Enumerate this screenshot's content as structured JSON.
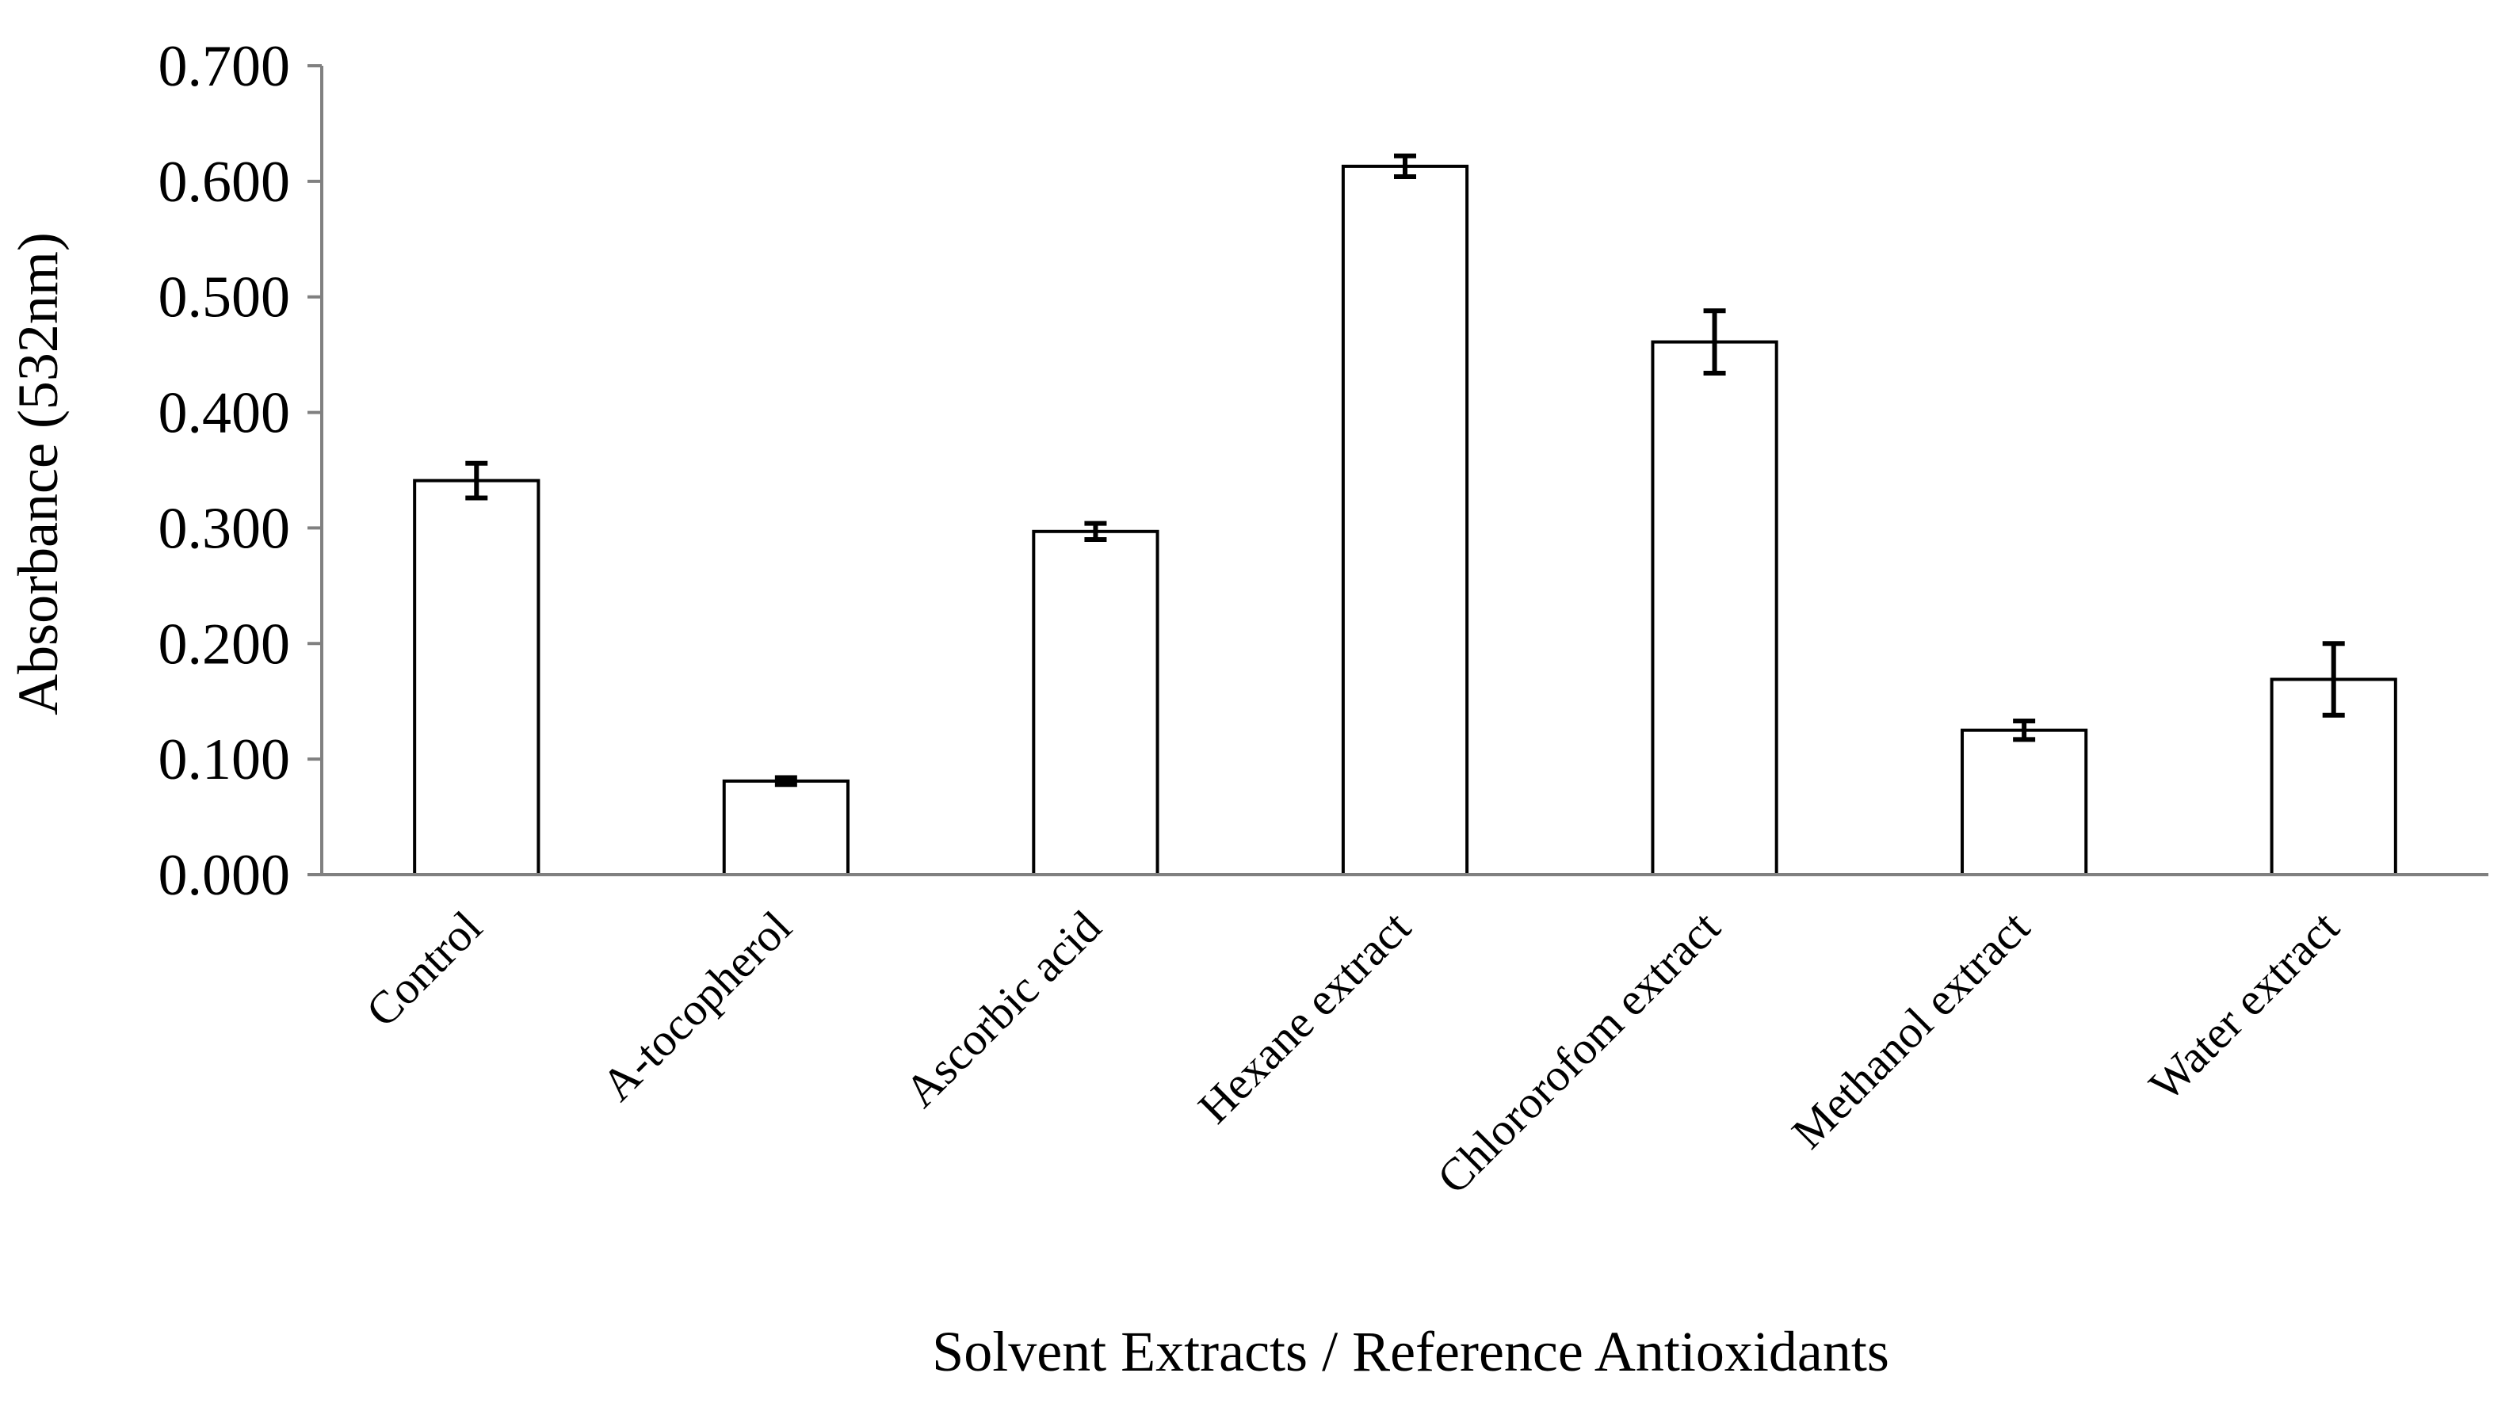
{
  "chart_data": {
    "type": "bar",
    "title": "",
    "xlabel": "Solvent Extracts / Reference Antioxidants",
    "ylabel": "Absorbance (532nm)",
    "ylim": [
      0,
      0.7
    ],
    "yticks": [
      "0.000",
      "0.100",
      "0.200",
      "0.300",
      "0.400",
      "0.500",
      "0.600",
      "0.700"
    ],
    "categories": [
      "Control",
      "A-tocopherol",
      "Ascorbic acid",
      "Hexane extract",
      "Chlororofom extract",
      "Methanol extract",
      "Water extract"
    ],
    "values": [
      0.341,
      0.081,
      0.297,
      0.613,
      0.461,
      0.125,
      0.169
    ],
    "errors": [
      0.015,
      0.003,
      0.007,
      0.009,
      0.027,
      0.008,
      0.031
    ],
    "grid": false,
    "legend": "none",
    "colors": {
      "bar_fill": "#ffffff",
      "bar_edge": "#000000",
      "axis": "#808080"
    }
  }
}
